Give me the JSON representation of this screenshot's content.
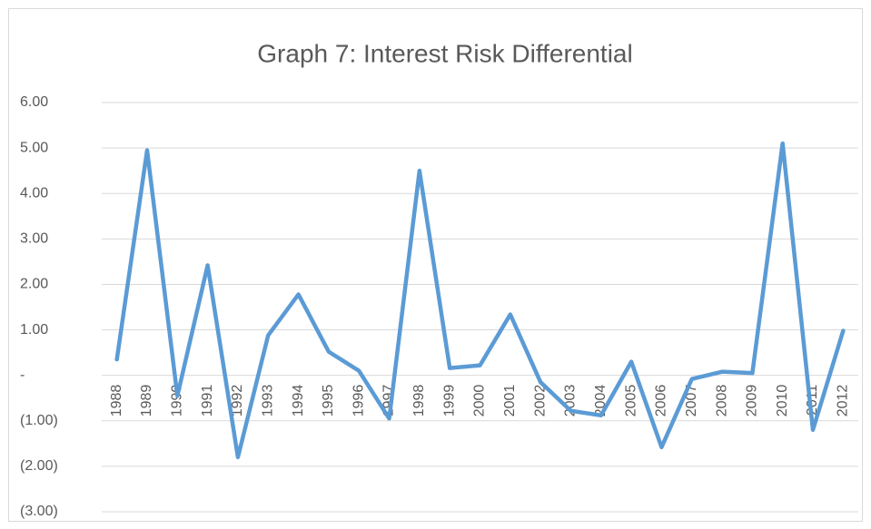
{
  "chart_data": {
    "type": "line",
    "title": "Graph 7: Interest Risk Differential",
    "categories": [
      "1988",
      "1989",
      "1990",
      "1991",
      "1992",
      "1993",
      "1994",
      "1995",
      "1996",
      "1997",
      "1998",
      "1999",
      "2000",
      "2001",
      "2002",
      "2003",
      "2004",
      "2005",
      "2006",
      "2007",
      "2008",
      "2009",
      "2010",
      "2011",
      "2012"
    ],
    "values": [
      0.35,
      4.95,
      -0.45,
      2.42,
      -1.8,
      0.88,
      1.78,
      0.52,
      0.1,
      -0.95,
      4.5,
      0.16,
      0.22,
      1.34,
      -0.15,
      -0.78,
      -0.88,
      0.3,
      -1.58,
      -0.08,
      0.08,
      0.05,
      5.1,
      -1.2,
      0.98
    ],
    "color": "#5b9bd5",
    "ylim": [
      -3,
      6
    ],
    "yticks": [
      {
        "value": 6,
        "label": "6.00"
      },
      {
        "value": 5,
        "label": "5.00"
      },
      {
        "value": 4,
        "label": "4.00"
      },
      {
        "value": 3,
        "label": "3.00"
      },
      {
        "value": 2,
        "label": "2.00"
      },
      {
        "value": 1,
        "label": "1.00"
      },
      {
        "value": 0,
        "label": "-"
      },
      {
        "value": -1,
        "label": "(1.00)"
      },
      {
        "value": -2,
        "label": "(2.00)"
      },
      {
        "value": -3,
        "label": "(3.00)"
      }
    ],
    "grid": true
  }
}
